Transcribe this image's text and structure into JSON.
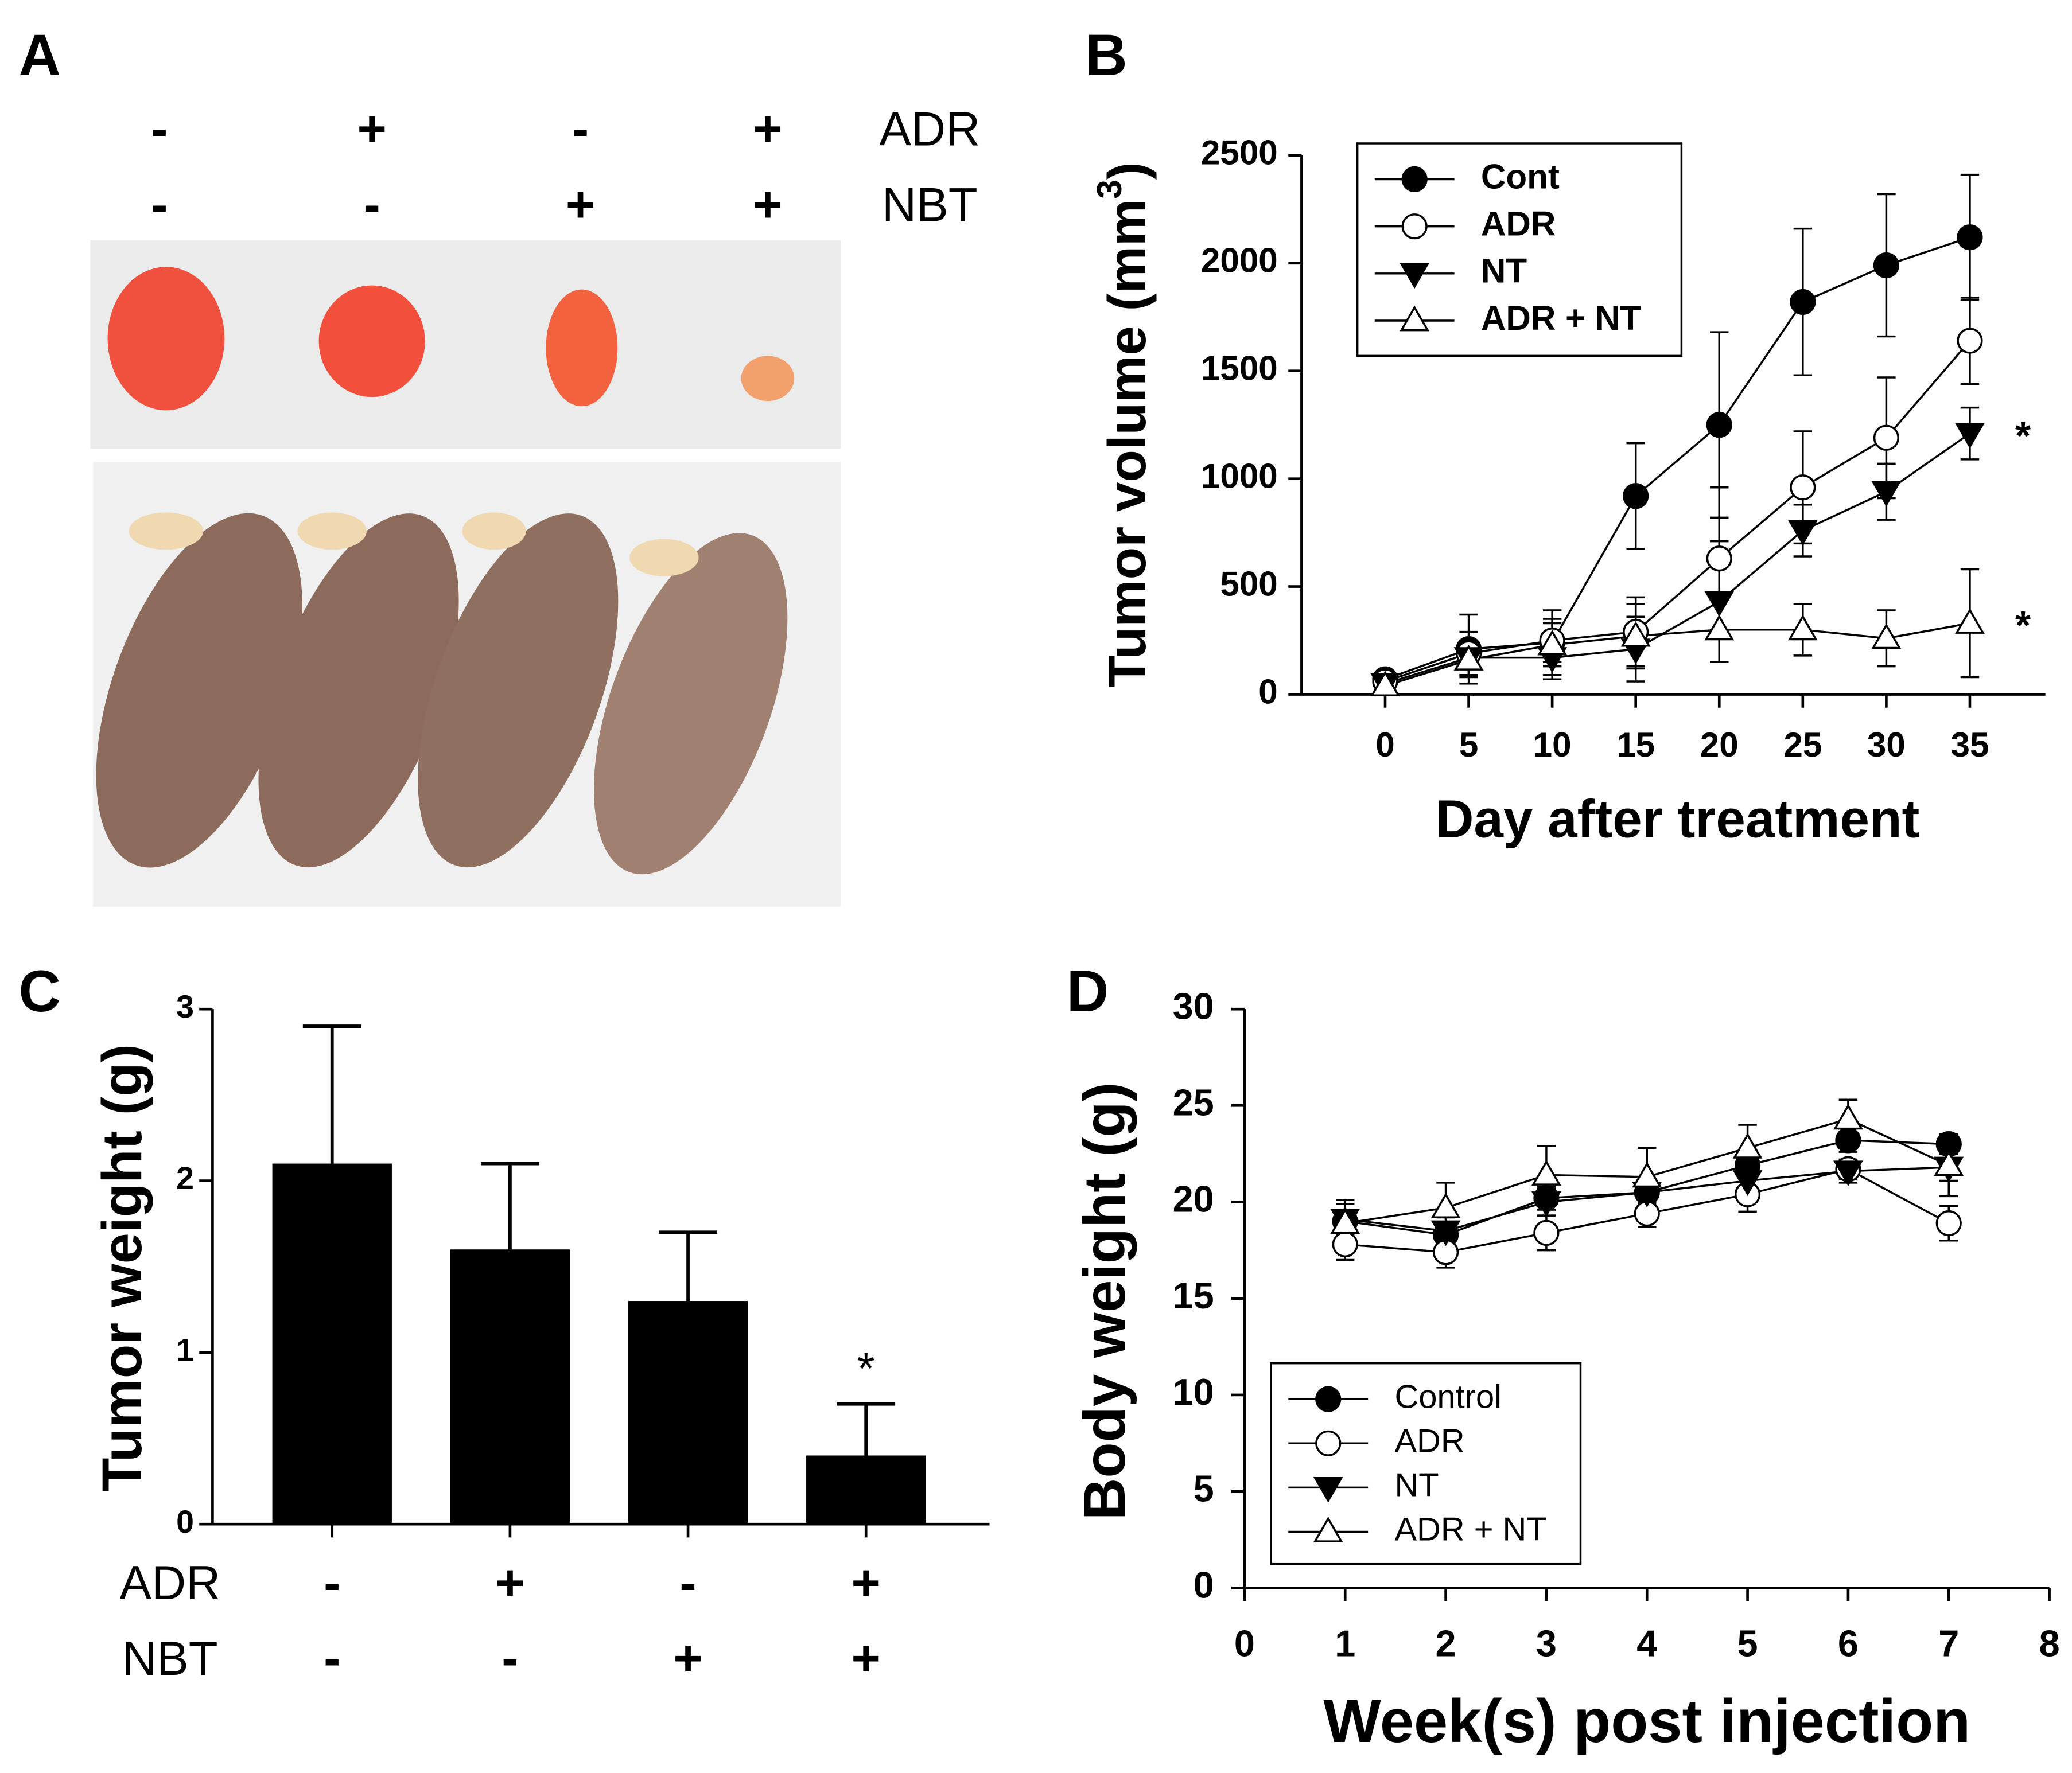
{
  "photo_panel": {
    "panel_label": "A",
    "rows": [
      {
        "name": "ADR",
        "signs": [
          "-",
          "+",
          "-",
          "+"
        ]
      },
      {
        "name": "NBT",
        "signs": [
          "-",
          "-",
          "+",
          "+"
        ]
      }
    ]
  },
  "chart_data": [
    {
      "type": "line",
      "panel_label": "B",
      "xlabel": "Day after treatment",
      "ylabel": [
        "Tumor volume (mm",
        "3",
        ")"
      ],
      "x": [
        0,
        5,
        10,
        15,
        20,
        25,
        30,
        35
      ],
      "xlim": [
        -5,
        40
      ],
      "xticks": [
        0,
        5,
        10,
        15,
        20,
        25,
        30,
        35
      ],
      "ylim": [
        0,
        2500
      ],
      "yticks": [
        0,
        500,
        1000,
        1500,
        2000,
        2500
      ],
      "error_bars": "both",
      "legend": "upper left",
      "legend_bold": true,
      "series": [
        {
          "name": "Cont",
          "color": "#000000",
          "marker": "circle",
          "marker_fill": "#000000",
          "values": [
            70,
            210,
            240,
            920,
            1250,
            1820,
            1990,
            2120
          ],
          "errors": [
            20,
            160,
            150,
            245,
            430,
            340,
            330,
            290
          ]
        },
        {
          "name": "ADR",
          "color": "#000000",
          "marker": "circle",
          "marker_fill": "#ffffff",
          "values": [
            60,
            190,
            250,
            290,
            630,
            960,
            1190,
            1640
          ],
          "errors": [
            20,
            100,
            100,
            160,
            330,
            260,
            280,
            200
          ]
        },
        {
          "name": "NT",
          "color": "#000000",
          "marker": "triangle-down",
          "marker_fill": "#000000",
          "values": [
            50,
            170,
            170,
            210,
            430,
            760,
            940,
            1210
          ],
          "errors": [
            20,
            80,
            100,
            150,
            280,
            120,
            130,
            120
          ]
        },
        {
          "name": "ADR + NT",
          "color": "#000000",
          "marker": "triangle-up",
          "marker_fill": "#ffffff",
          "values": [
            40,
            160,
            230,
            270,
            300,
            300,
            260,
            330
          ],
          "errors": [
            20,
            80,
            100,
            150,
            150,
            120,
            130,
            250
          ]
        }
      ],
      "annotations": [
        {
          "text": "*",
          "series": "NT"
        },
        {
          "text": "*",
          "series": "ADR + NT"
        }
      ]
    },
    {
      "type": "bar",
      "panel_label": "C",
      "ylabel": [
        "Tumor weight (g)"
      ],
      "categories": [
        null,
        null,
        null,
        null
      ],
      "values": [
        2.1,
        1.6,
        1.3,
        0.4
      ],
      "errors": [
        0.8,
        0.5,
        0.4,
        0.3
      ],
      "color": "#000000",
      "error_bars": "upper",
      "ylim": [
        0,
        3
      ],
      "yticks": [
        0,
        1,
        2,
        3
      ],
      "rows": [
        {
          "name": "ADR",
          "signs": [
            "-",
            "+",
            "-",
            "+"
          ]
        },
        {
          "name": "NBT",
          "signs": [
            "-",
            "-",
            "+",
            "+"
          ]
        }
      ],
      "annotations": [
        {
          "text": "*"
        }
      ]
    },
    {
      "type": "line",
      "panel_label": "D",
      "xlabel": "Week(s) post injection",
      "ylabel": [
        "Body weight (g)"
      ],
      "x": [
        1,
        2,
        3,
        4,
        5,
        6,
        7
      ],
      "xlim": [
        0,
        8
      ],
      "xticks": [
        0,
        1,
        2,
        3,
        4,
        5,
        6,
        7,
        8
      ],
      "ylim": [
        0,
        30
      ],
      "yticks": [
        0,
        5,
        10,
        15,
        20,
        25,
        30
      ],
      "error_bars": "both",
      "legend": "lower left",
      "legend_bold": false,
      "series": [
        {
          "name": "Control",
          "color": "#000000",
          "marker": "circle",
          "marker_fill": "#000000",
          "values": [
            19.0,
            18.3,
            20.2,
            20.5,
            21.9,
            23.2,
            23.0
          ],
          "errors": [
            0.5,
            0.5,
            0.6,
            0.5,
            0.6,
            0.6,
            0.5
          ]
        },
        {
          "name": "ADR",
          "color": "#000000",
          "marker": "circle",
          "marker_fill": "#ffffff",
          "values": [
            17.8,
            17.4,
            18.4,
            19.4,
            20.4,
            21.7,
            18.9
          ],
          "errors": [
            0.8,
            0.8,
            0.9,
            0.7,
            0.9,
            0.5,
            0.9
          ]
        },
        {
          "name": "NT",
          "color": "#000000",
          "marker": "triangle-down",
          "marker_fill": "#000000",
          "values": [
            19.1,
            18.5,
            20.0,
            20.5,
            21.1,
            21.6,
            21.8
          ],
          "errors": [
            0.8,
            0.7,
            0.7,
            0.6,
            0.7,
            0.6,
            0.7
          ]
        },
        {
          "name": "ADR + NT",
          "color": "#000000",
          "marker": "triangle-up",
          "marker_fill": "#ffffff",
          "values": [
            18.9,
            19.7,
            21.4,
            21.3,
            22.8,
            24.3,
            21.9
          ],
          "errors": [
            1.2,
            1.3,
            1.5,
            1.5,
            1.2,
            1.0,
            1.6
          ]
        }
      ]
    }
  ]
}
